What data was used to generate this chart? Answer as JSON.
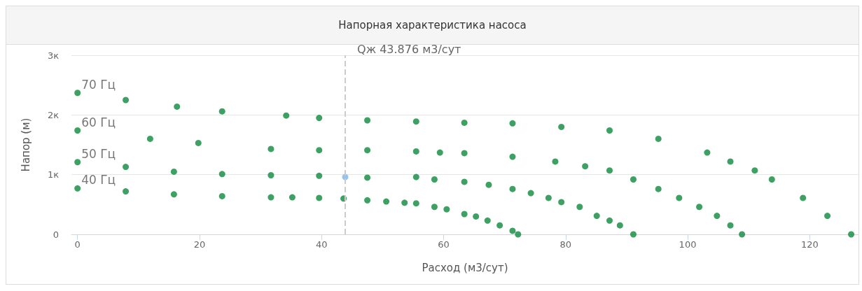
{
  "chart_data": {
    "type": "scatter",
    "title": "Напорная характеристика насоса",
    "xlabel": "Расход (м3/сут)",
    "ylabel": "Напор (м)",
    "xlim": [
      -1,
      128
    ],
    "xticks": [
      0,
      20,
      40,
      60,
      80,
      100,
      120
    ],
    "ylim": [
      0,
      3
    ],
    "yticks": [
      0,
      {
        "value": 1,
        "label": "1к"
      },
      {
        "value": 2,
        "label": "2к"
      },
      {
        "value": 3,
        "label": "3к"
      }
    ],
    "grid": "y",
    "legend": false,
    "marker": "circle",
    "series": [
      {
        "name": "70 Гц",
        "color": "#0c8a3c",
        "x": [
          0,
          7.9,
          16.3,
          23.7,
          34.2,
          39.6,
          47.5,
          55.5,
          63.4,
          71.3,
          79.3,
          87.2,
          95.2,
          103.2,
          107,
          111,
          113.8,
          118.9,
          122.9,
          126.8
        ],
        "values": [
          2.37,
          2.25,
          2.14,
          2.06,
          1.99,
          1.95,
          1.91,
          1.89,
          1.87,
          1.86,
          1.8,
          1.74,
          1.6,
          1.37,
          1.22,
          1.07,
          0.92,
          0.61,
          0.31,
          0
        ]
      },
      {
        "name": "60 Гц",
        "color": "#0c8a3c",
        "x": [
          0,
          11.9,
          19.8,
          31.7,
          39.6,
          47.5,
          55.5,
          59.4,
          63.4,
          71.3,
          78.3,
          83.2,
          87.2,
          91.1,
          95.2,
          98.6,
          101.9,
          104.8,
          107,
          108.9
        ],
        "values": [
          1.74,
          1.6,
          1.53,
          1.43,
          1.41,
          1.41,
          1.39,
          1.37,
          1.36,
          1.3,
          1.22,
          1.14,
          1.07,
          0.92,
          0.76,
          0.61,
          0.46,
          0.31,
          0.15,
          0
        ]
      },
      {
        "name": "50 Гц",
        "color": "#0c8a3c",
        "x": [
          0,
          7.9,
          15.8,
          23.7,
          31.7,
          39.6,
          47.5,
          55.5,
          58.5,
          63.4,
          67.4,
          71.3,
          74.3,
          77.2,
          79.3,
          82.3,
          85.1,
          87.2,
          88.9,
          91.1
        ],
        "values": [
          1.21,
          1.13,
          1.05,
          1.01,
          0.99,
          0.98,
          0.95,
          0.96,
          0.92,
          0.88,
          0.83,
          0.76,
          0.69,
          0.61,
          0.54,
          0.46,
          0.31,
          0.23,
          0.15,
          0
        ]
      },
      {
        "name": "40 Гц",
        "color": "#0c8a3c",
        "x": [
          0,
          7.9,
          15.8,
          23.7,
          31.7,
          35.2,
          39.6,
          43.6,
          47.5,
          50.6,
          53.6,
          55.5,
          58.5,
          60.5,
          63.4,
          65.3,
          67.2,
          69.2,
          71.3,
          72.2
        ],
        "values": [
          0.77,
          0.72,
          0.67,
          0.64,
          0.62,
          0.62,
          0.61,
          0.6,
          0.57,
          0.55,
          0.53,
          0.52,
          0.46,
          0.42,
          0.34,
          0.3,
          0.23,
          0.15,
          0.06,
          0
        ]
      },
      {
        "color": "#7cb5ec",
        "x": [
          43.876
        ],
        "values": [
          0.96
        ]
      }
    ],
    "ref_lines": [
      {
        "axis": "x",
        "value": 43.876,
        "label": "Qж 43.876 м3/сут",
        "color": "#cccccc",
        "line_style": "dashed"
      }
    ]
  }
}
